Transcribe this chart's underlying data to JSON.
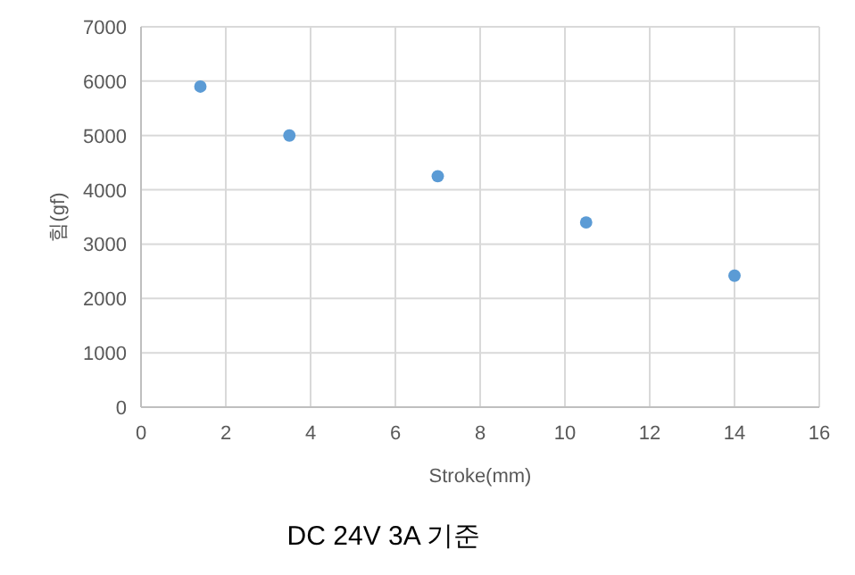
{
  "chart_data": {
    "type": "scatter",
    "xlabel": "Stroke(mm)",
    "ylabel": "힘(gf)",
    "annotations": [
      "DC 24V 3A 기준"
    ],
    "x": [
      1.4,
      3.5,
      7,
      10.5,
      14
    ],
    "series": [
      {
        "color": "#5b9bd5",
        "values": [
          5900,
          5000,
          4250,
          3400,
          2420
        ]
      }
    ],
    "xlim": [
      0,
      16
    ],
    "xticks": [
      0,
      2,
      4,
      6,
      8,
      10,
      12,
      14,
      16
    ],
    "ylim": [
      0,
      7000
    ],
    "yticks": [
      0,
      1000,
      2000,
      3000,
      4000,
      5000,
      6000,
      7000
    ],
    "grid": true,
    "marker": "circle"
  }
}
